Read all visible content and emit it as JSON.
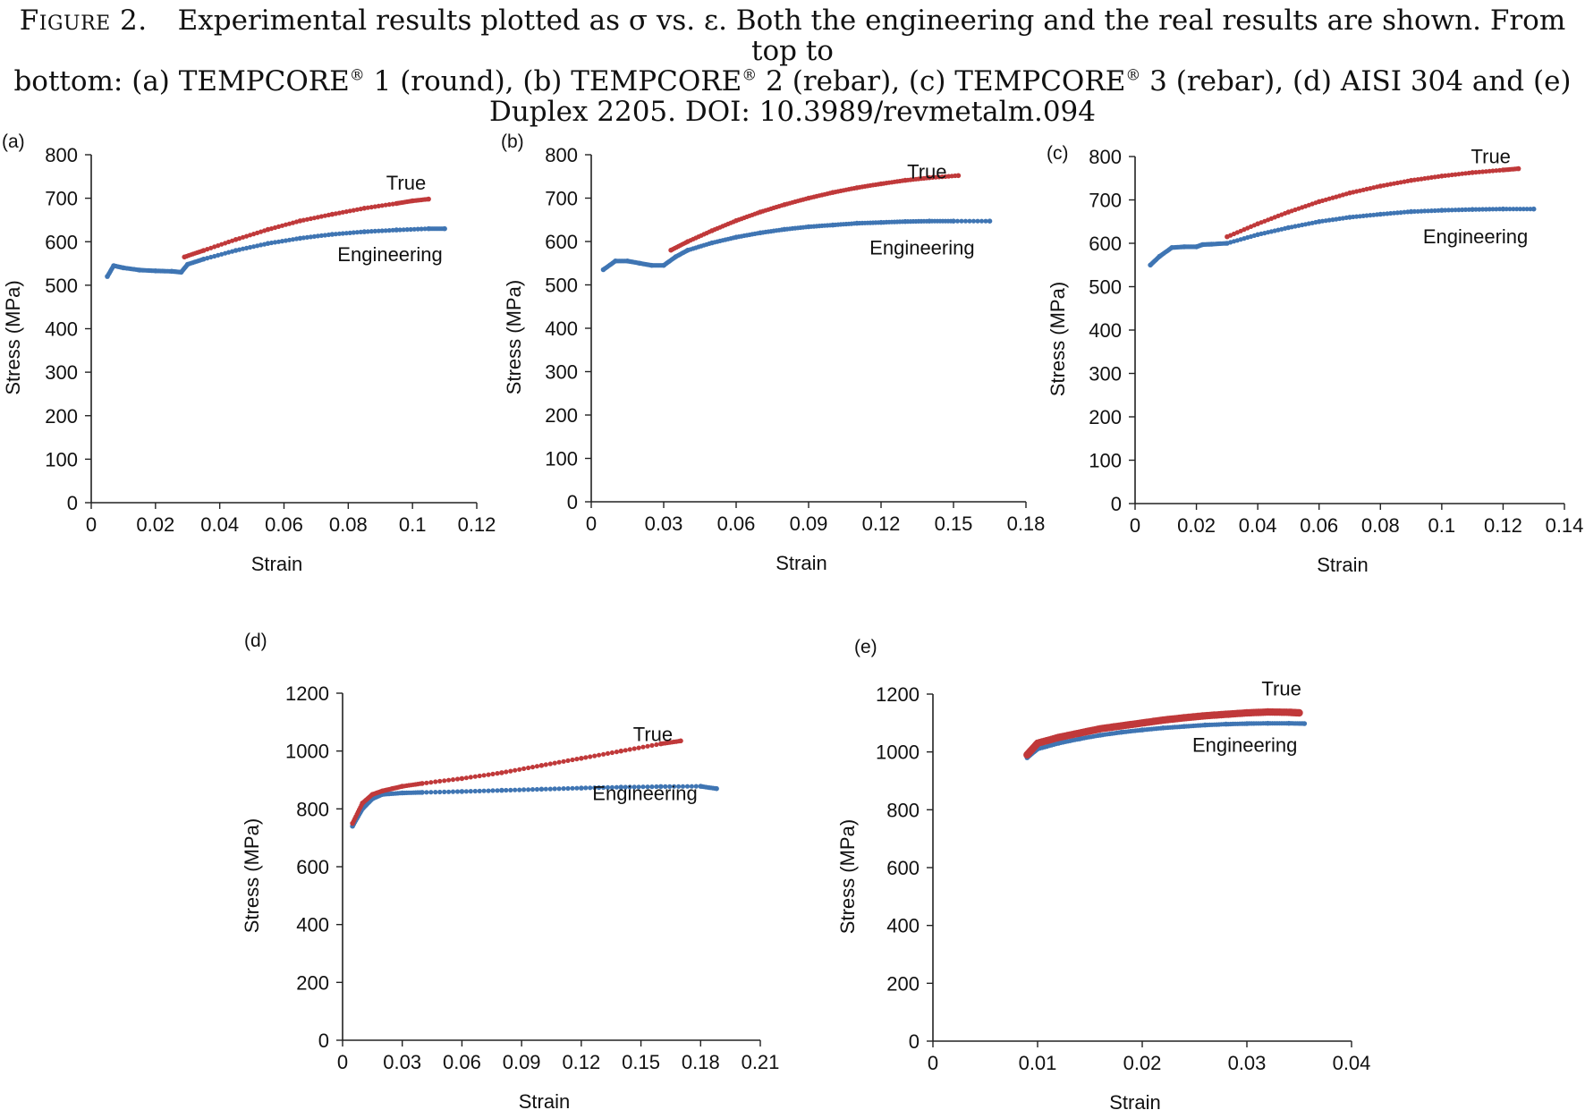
{
  "caption": {
    "lead": "Figure 2.",
    "line1_rest": "Experimental results plotted as σ vs. ε. Both the engineering and the real results are shown. From top to",
    "line2_pre": "bottom: (a) TEMPCORE",
    "reg": "®",
    "line2_a": " 1 (round), (b) TEMPCORE",
    "line2_b": " 2 (rebar), (c) TEMPCORE",
    "line2_c": " 3 (rebar), (d) AISI 304 and (e)",
    "line3": "Duplex 2205. DOI: 10.3989/revmetalm.094"
  },
  "colors": {
    "true": "#c0393a",
    "engineering": "#3f75b3",
    "axis": "#222222"
  },
  "chart_data": [
    {
      "panel": "(a)",
      "type": "scatter",
      "xlabel": "Strain",
      "ylabel": "Stress (MPa)",
      "xlim": [
        0,
        0.12
      ],
      "ylim": [
        0,
        800
      ],
      "xticks": [
        "0",
        "0.02",
        "0.04",
        "0.06",
        "0.08",
        "0.1",
        "0.12"
      ],
      "yticks": [
        "0",
        "100",
        "200",
        "300",
        "400",
        "500",
        "600",
        "700",
        "800"
      ],
      "grid": false,
      "series": [
        {
          "name": "True",
          "color": "#c0393a",
          "label_at": [
            0.098,
            720
          ],
          "x": [
            0.029,
            0.035,
            0.045,
            0.055,
            0.065,
            0.075,
            0.085,
            0.095,
            0.1,
            0.105
          ],
          "y": [
            565,
            580,
            605,
            628,
            648,
            663,
            677,
            688,
            694,
            698
          ]
        },
        {
          "name": "Engineering",
          "color": "#3f75b3",
          "label_at": [
            0.093,
            555
          ],
          "x": [
            0.005,
            0.007,
            0.01,
            0.015,
            0.02,
            0.025,
            0.028,
            0.03,
            0.035,
            0.045,
            0.055,
            0.065,
            0.075,
            0.085,
            0.095,
            0.105,
            0.11
          ],
          "y": [
            520,
            545,
            540,
            535,
            533,
            532,
            530,
            548,
            560,
            580,
            596,
            608,
            617,
            623,
            627,
            630,
            630
          ]
        }
      ]
    },
    {
      "panel": "(b)",
      "type": "scatter",
      "xlabel": "Strain",
      "ylabel": "Stress (MPa)",
      "xlim": [
        0,
        0.18
      ],
      "ylim": [
        0,
        800
      ],
      "xticks": [
        "0",
        "0.03",
        "0.06",
        "0.09",
        "0.12",
        "0.15",
        "0.18"
      ],
      "yticks": [
        "0",
        "100",
        "200",
        "300",
        "400",
        "500",
        "600",
        "700",
        "800"
      ],
      "grid": false,
      "series": [
        {
          "name": "True",
          "color": "#c0393a",
          "label_at": [
            0.139,
            745
          ],
          "x": [
            0.033,
            0.04,
            0.05,
            0.06,
            0.07,
            0.08,
            0.09,
            0.1,
            0.11,
            0.12,
            0.13,
            0.14,
            0.152
          ],
          "y": [
            580,
            600,
            625,
            648,
            668,
            685,
            700,
            713,
            724,
            733,
            741,
            747,
            752
          ]
        },
        {
          "name": "Engineering",
          "color": "#3f75b3",
          "label_at": [
            0.137,
            570
          ],
          "x": [
            0.005,
            0.01,
            0.015,
            0.02,
            0.025,
            0.03,
            0.035,
            0.04,
            0.05,
            0.06,
            0.07,
            0.08,
            0.09,
            0.1,
            0.11,
            0.12,
            0.13,
            0.14,
            0.15,
            0.165
          ],
          "y": [
            535,
            555,
            555,
            550,
            545,
            545,
            565,
            580,
            597,
            610,
            620,
            628,
            634,
            638,
            642,
            644,
            646,
            647,
            647,
            647
          ]
        }
      ]
    },
    {
      "panel": "(c)",
      "type": "scatter",
      "xlabel": "Strain",
      "ylabel": "Stress (MPa)",
      "xlim": [
        0,
        0.14
      ],
      "ylim": [
        0,
        800
      ],
      "xticks": [
        "0",
        "0.02",
        "0.04",
        "0.06",
        "0.08",
        "0.1",
        "0.12",
        "0.14"
      ],
      "yticks": [
        "0",
        "100",
        "200",
        "300",
        "400",
        "500",
        "600",
        "700",
        "800"
      ],
      "grid": false,
      "series": [
        {
          "name": "True",
          "color": "#c0393a",
          "label_at": [
            0.116,
            785
          ],
          "x": [
            0.03,
            0.04,
            0.05,
            0.06,
            0.07,
            0.08,
            0.09,
            0.1,
            0.11,
            0.12,
            0.125
          ],
          "y": [
            615,
            645,
            672,
            696,
            716,
            732,
            745,
            755,
            763,
            769,
            772
          ]
        },
        {
          "name": "Engineering",
          "color": "#3f75b3",
          "label_at": [
            0.111,
            600
          ],
          "x": [
            0.005,
            0.008,
            0.012,
            0.016,
            0.02,
            0.022,
            0.025,
            0.03,
            0.04,
            0.05,
            0.06,
            0.07,
            0.08,
            0.09,
            0.1,
            0.11,
            0.12,
            0.13
          ],
          "y": [
            550,
            570,
            590,
            592,
            592,
            597,
            598,
            600,
            620,
            636,
            650,
            660,
            667,
            673,
            676,
            678,
            679,
            679
          ]
        }
      ]
    },
    {
      "panel": "(d)",
      "type": "scatter",
      "xlabel": "Strain",
      "ylabel": "Stress (MPa)",
      "xlim": [
        0,
        0.21
      ],
      "ylim": [
        0,
        1200
      ],
      "xticks": [
        "0",
        "0.03",
        "0.06",
        "0.09",
        "0.12",
        "0.15",
        "0.18",
        "0.21"
      ],
      "yticks": [
        "0",
        "200",
        "400",
        "600",
        "800",
        "1000",
        "1200"
      ],
      "grid": false,
      "series": [
        {
          "name": "True",
          "color": "#c0393a",
          "label_at": [
            0.156,
            1035
          ],
          "x": [
            0.005,
            0.01,
            0.015,
            0.02,
            0.025,
            0.03,
            0.04,
            0.06,
            0.08,
            0.1,
            0.12,
            0.14,
            0.16,
            0.17
          ],
          "y": [
            750,
            820,
            850,
            862,
            870,
            878,
            888,
            905,
            925,
            950,
            975,
            1000,
            1025,
            1035
          ]
        },
        {
          "name": "Engineering",
          "color": "#3f75b3",
          "label_at": [
            0.152,
            830
          ],
          "x": [
            0.005,
            0.01,
            0.015,
            0.02,
            0.03,
            0.04,
            0.06,
            0.08,
            0.1,
            0.12,
            0.14,
            0.16,
            0.18,
            0.188
          ],
          "y": [
            740,
            800,
            835,
            850,
            855,
            857,
            860,
            864,
            868,
            872,
            875,
            877,
            878,
            870
          ]
        }
      ]
    },
    {
      "panel": "(e)",
      "type": "scatter",
      "xlabel": "Strain",
      "ylabel": "Stress (MPa)",
      "xlim": [
        0,
        0.04
      ],
      "ylim": [
        0,
        1200
      ],
      "xticks": [
        "0",
        "0.01",
        "0.02",
        "0.03",
        "0.04"
      ],
      "yticks": [
        "0",
        "200",
        "400",
        "600",
        "800",
        "1000",
        "1200"
      ],
      "grid": false,
      "series": [
        {
          "name": "True",
          "color": "#c0393a",
          "label_at": [
            0.0333,
            1195
          ],
          "x": [
            0.009,
            0.01,
            0.012,
            0.014,
            0.016,
            0.018,
            0.02,
            0.022,
            0.024,
            0.026,
            0.028,
            0.03,
            0.032,
            0.034,
            0.035
          ],
          "y": [
            990,
            1030,
            1050,
            1065,
            1080,
            1090,
            1100,
            1110,
            1118,
            1125,
            1130,
            1135,
            1138,
            1137,
            1135
          ]
        },
        {
          "name": "Engineering",
          "color": "#3f75b3",
          "label_at": [
            0.0298,
            1000
          ],
          "x": [
            0.009,
            0.01,
            0.012,
            0.014,
            0.016,
            0.018,
            0.02,
            0.022,
            0.024,
            0.026,
            0.028,
            0.03,
            0.032,
            0.034,
            0.0355
          ],
          "y": [
            980,
            1010,
            1030,
            1045,
            1058,
            1068,
            1076,
            1083,
            1088,
            1093,
            1096,
            1098,
            1099,
            1099,
            1098
          ]
        }
      ]
    }
  ]
}
